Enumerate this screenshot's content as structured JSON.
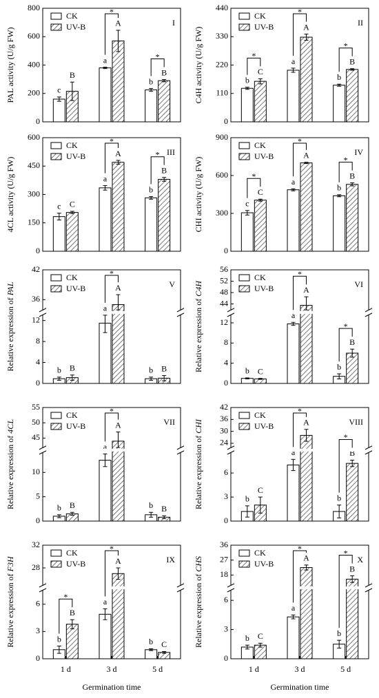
{
  "chart_data": [
    {
      "type": "bar",
      "panel": "I",
      "ylabel": "PAL activity (U/g FW)",
      "ylim": [
        0,
        800
      ],
      "yticks": [
        0,
        200,
        400,
        600,
        800
      ],
      "series": [
        {
          "name": "CK",
          "color": "#ffffff",
          "values": [
            160,
            380,
            225
          ],
          "errors": [
            15,
            5,
            10
          ],
          "letters": [
            "c",
            "a",
            "b"
          ]
        },
        {
          "name": "UV-B",
          "color": "#ffffff",
          "hatch": true,
          "values": [
            215,
            570,
            290
          ],
          "errors": [
            65,
            75,
            8
          ],
          "letters": [
            "B",
            "A",
            "B"
          ]
        }
      ],
      "sig": [
        null,
        "*",
        "*"
      ]
    },
    {
      "type": "bar",
      "panel": "II",
      "ylabel": "C4H activity (U/g FW)",
      "ylim": [
        0,
        440
      ],
      "yticks": [
        0,
        110,
        220,
        330,
        440
      ],
      "series": [
        {
          "name": "CK",
          "color": "#ffffff",
          "values": [
            130,
            200,
            142
          ],
          "errors": [
            4,
            8,
            4
          ],
          "letters": [
            "b",
            "a",
            "b"
          ]
        },
        {
          "name": "UV-B",
          "color": "#ffffff",
          "hatch": true,
          "values": [
            157,
            328,
            203
          ],
          "errors": [
            10,
            12,
            3
          ],
          "letters": [
            "C",
            "A",
            "B"
          ]
        }
      ],
      "sig": [
        "*",
        "*",
        "*"
      ]
    },
    {
      "type": "bar",
      "panel": "III",
      "ylabel": "4CL activity (U/g FW)",
      "ylim": [
        0,
        600
      ],
      "yticks": [
        0,
        150,
        300,
        450,
        600
      ],
      "series": [
        {
          "name": "CK",
          "color": "#ffffff",
          "values": [
            183,
            335,
            282
          ],
          "errors": [
            18,
            12,
            7
          ],
          "letters": [
            "c",
            "a",
            "b"
          ]
        },
        {
          "name": "UV-B",
          "color": "#ffffff",
          "hatch": true,
          "values": [
            205,
            470,
            380
          ],
          "errors": [
            6,
            10,
            10
          ],
          "letters": [
            "C",
            "A",
            "B"
          ]
        }
      ],
      "sig": [
        null,
        "*",
        "*"
      ]
    },
    {
      "type": "bar",
      "panel": "IV",
      "ylabel": "CHI activity (U/g FW)",
      "ylim": [
        0,
        900
      ],
      "yticks": [
        0,
        300,
        600,
        900
      ],
      "series": [
        {
          "name": "CK",
          "color": "#ffffff",
          "values": [
            305,
            487,
            440
          ],
          "errors": [
            18,
            8,
            8
          ],
          "letters": [
            "c",
            "a",
            "b"
          ]
        },
        {
          "name": "UV-B",
          "color": "#ffffff",
          "hatch": true,
          "values": [
            405,
            700,
            530
          ],
          "errors": [
            8,
            5,
            12
          ],
          "letters": [
            "C",
            "A",
            "B"
          ]
        }
      ],
      "sig": [
        "*",
        "*",
        "*"
      ]
    },
    {
      "type": "bar",
      "panel": "V",
      "ylabel": "Relative expression of ",
      "gene": "PAL",
      "ylim": [
        0,
        42
      ],
      "ybreak": [
        13,
        34
      ],
      "yticks": [
        0,
        4,
        8,
        12,
        36,
        42
      ],
      "series": [
        {
          "name": "CK",
          "color": "#ffffff",
          "values": [
            0.9,
            11.5,
            0.9
          ],
          "errors": [
            0.3,
            1.8,
            0.3
          ],
          "letters": [
            "b",
            "a",
            "b"
          ]
        },
        {
          "name": "UV-B",
          "color": "#ffffff",
          "hatch": true,
          "values": [
            1.1,
            35,
            1.0
          ],
          "errors": [
            0.5,
            2,
            0.5
          ],
          "letters": [
            "B",
            "A",
            "B"
          ]
        }
      ],
      "sig": [
        null,
        "*",
        null
      ]
    },
    {
      "type": "bar",
      "panel": "VI",
      "ylabel": "Relative expression of ",
      "gene": "C4H",
      "ylim": [
        0,
        56
      ],
      "ybreak": [
        13.5,
        42
      ],
      "yticks": [
        0,
        4,
        8,
        12,
        44,
        48,
        52,
        56
      ],
      "series": [
        {
          "name": "CK",
          "color": "#ffffff",
          "values": [
            1.0,
            11.8,
            1.4
          ],
          "errors": [
            0.1,
            0.3,
            0.5
          ],
          "letters": [
            "b",
            "a",
            "b"
          ]
        },
        {
          "name": "UV-B",
          "color": "#ffffff",
          "hatch": true,
          "values": [
            0.9,
            43.5,
            6
          ],
          "errors": [
            0.1,
            3,
            0.8
          ],
          "letters": [
            "C",
            "A",
            "B"
          ]
        }
      ],
      "sig": [
        null,
        "*",
        "*"
      ]
    },
    {
      "type": "bar",
      "panel": "VII",
      "ylabel": "Relative expression of ",
      "gene": "4CL",
      "ylim": [
        0,
        55
      ],
      "ybreak": [
        14,
        42
      ],
      "yticks": [
        0,
        5,
        10,
        45,
        50,
        55
      ],
      "series": [
        {
          "name": "CK",
          "color": "#ffffff",
          "values": [
            1.0,
            12.5,
            1.3
          ],
          "errors": [
            0.3,
            1.3,
            0.5
          ],
          "letters": [
            "b",
            "a",
            "b"
          ]
        },
        {
          "name": "UV-B",
          "color": "#ffffff",
          "hatch": true,
          "values": [
            1.5,
            44,
            0.8
          ],
          "errors": [
            0.3,
            3,
            0.3
          ],
          "letters": [
            "B",
            "A",
            "B"
          ]
        }
      ],
      "sig": [
        null,
        "*",
        null
      ]
    },
    {
      "type": "bar",
      "panel": "VIII",
      "ylabel": "Relative expression of ",
      "gene": "CHI",
      "ylim": [
        0,
        42
      ],
      "ybreak": [
        8.5,
        22
      ],
      "yticks": [
        0,
        3,
        6,
        24,
        30,
        36,
        42
      ],
      "series": [
        {
          "name": "CK",
          "color": "#ffffff",
          "values": [
            1.2,
            7.0,
            1.2
          ],
          "errors": [
            0.7,
            0.7,
            0.8
          ],
          "letters": [
            "b",
            "a",
            "b"
          ]
        },
        {
          "name": "UV-B",
          "color": "#ffffff",
          "hatch": true,
          "values": [
            2.0,
            28,
            7.2
          ],
          "errors": [
            1.0,
            3,
            0.4
          ],
          "letters": [
            "C",
            "A",
            "B"
          ]
        }
      ],
      "sig": [
        null,
        "*",
        "*"
      ]
    },
    {
      "type": "bar",
      "panel": "IX",
      "ylabel": "Relative expression of ",
      "gene": "F3H",
      "ylim": [
        0,
        32
      ],
      "ybreak": [
        7.5,
        25
      ],
      "yticks": [
        0,
        3,
        6,
        28,
        32
      ],
      "categories": [
        "1 d",
        "3 d",
        "5 d"
      ],
      "xlabel": "Germination time",
      "series": [
        {
          "name": "CK",
          "color": "#ffffff",
          "values": [
            1.0,
            4.9,
            1.0
          ],
          "errors": [
            0.4,
            0.6,
            0.1
          ],
          "letters": [
            "b",
            "a",
            "b"
          ]
        },
        {
          "name": "UV-B",
          "color": "#ffffff",
          "hatch": true,
          "values": [
            3.8,
            27,
            0.7
          ],
          "errors": [
            0.5,
            1,
            0.1
          ],
          "letters": [
            "B",
            "A",
            "C"
          ]
        }
      ],
      "sig": [
        "*",
        "*",
        null
      ]
    },
    {
      "type": "bar",
      "panel": "X",
      "ylabel": "Relative expression of ",
      "gene": "CHS",
      "ylim": [
        0,
        36
      ],
      "ybreak": [
        7,
        12
      ],
      "yticks": [
        0,
        3,
        6,
        18,
        27,
        36
      ],
      "categories": [
        "1 d",
        "3 d",
        "5 d"
      ],
      "xlabel": "Germination time",
      "series": [
        {
          "name": "CK",
          "color": "#ffffff",
          "values": [
            1.2,
            4.3,
            1.5
          ],
          "errors": [
            0.2,
            0.2,
            0.4
          ],
          "letters": [
            "b",
            "a",
            "b"
          ]
        },
        {
          "name": "UV-B",
          "color": "#ffffff",
          "hatch": true,
          "values": [
            1.4,
            22.5,
            15.5
          ],
          "errors": [
            0.2,
            1.5,
            2
          ],
          "letters": [
            "C",
            "A",
            "B"
          ]
        }
      ],
      "sig": [
        null,
        "*",
        "*"
      ]
    }
  ]
}
